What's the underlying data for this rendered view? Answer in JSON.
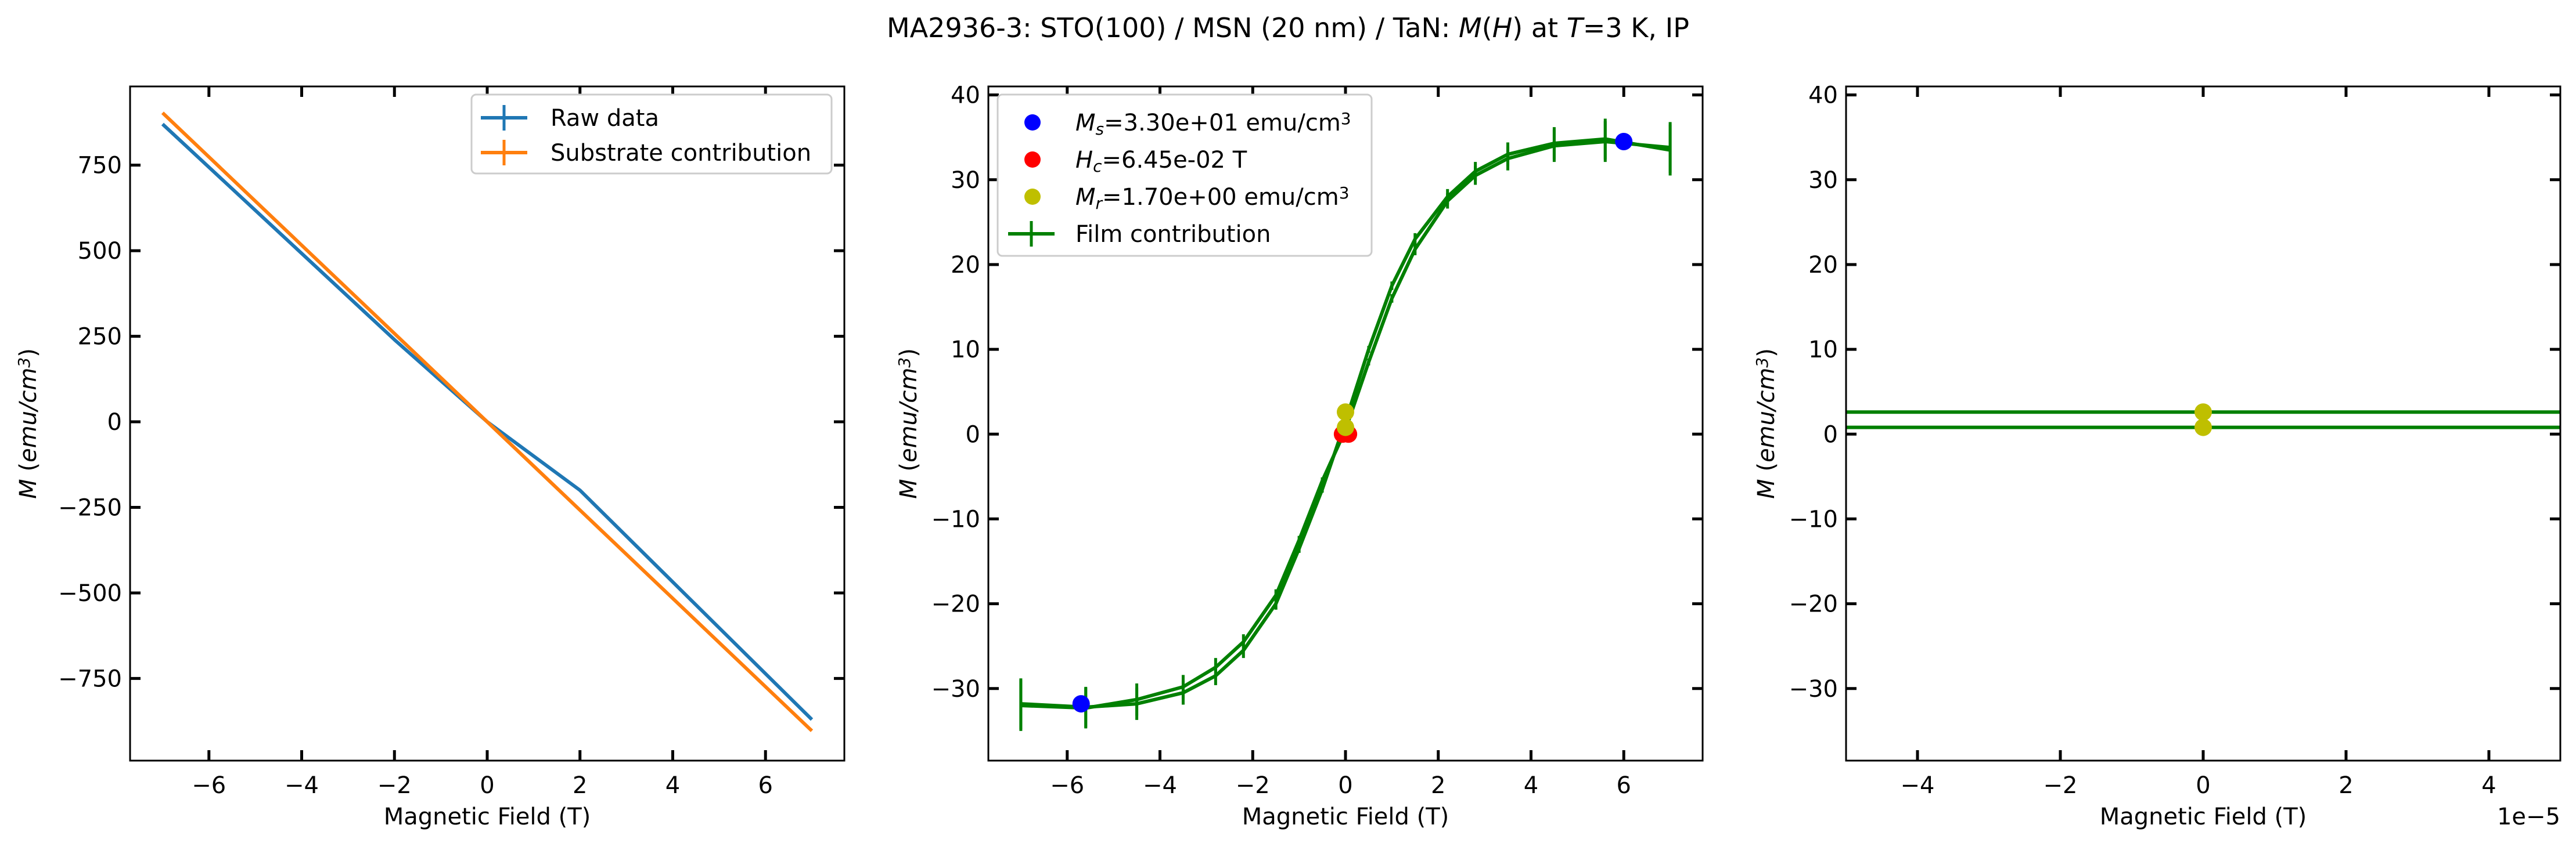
{
  "figure_title_parts": [
    {
      "t": "MA2936-3: STO(100)  / MSN (20 nm) / TaN: ",
      "i": false
    },
    {
      "t": "M",
      "i": true
    },
    {
      "t": "(",
      "i": false
    },
    {
      "t": "H",
      "i": true
    },
    {
      "t": ") at ",
      "i": false
    },
    {
      "t": "T",
      "i": true
    },
    {
      "t": "=3 K, IP",
      "i": false
    }
  ],
  "colors": {
    "raw": "#1f77b4",
    "substrate": "#ff7f0e",
    "film": "#008000",
    "ms": "#0000ff",
    "hc": "#ff0000",
    "mr": "#bfbf00"
  },
  "chart_data": [
    {
      "type": "line",
      "xlabel": "Magnetic Field (T)",
      "ylabel_parts": [
        {
          "t": "M",
          "i": true
        },
        {
          "t": " (",
          "i": false
        },
        {
          "t": "emu/cm",
          "i": true
        },
        {
          "t": "3",
          "i": true,
          "sup": true
        },
        {
          "t": ")",
          "i": false
        }
      ],
      "xlim": [
        -7.7,
        7.7
      ],
      "ylim": [
        -990,
        980
      ],
      "xticks": [
        -6,
        -4,
        -2,
        0,
        2,
        4,
        6
      ],
      "xtick_labels": [
        "−6",
        "−4",
        "−2",
        "0",
        "2",
        "4",
        "6"
      ],
      "yticks": [
        -750,
        -500,
        -250,
        0,
        250,
        500,
        750
      ],
      "ytick_labels": [
        "−750",
        "−500",
        "−250",
        "0",
        "250",
        "500",
        "750"
      ],
      "legend_position": "upper right",
      "series": [
        {
          "name": "Raw data",
          "color_key": "raw",
          "x": [
            -7,
            -2,
            0,
            2,
            7
          ],
          "y": [
            870,
            240,
            0,
            -200,
            -870
          ]
        },
        {
          "name": "Substrate contribution",
          "color_key": "substrate",
          "x": [
            -7,
            0,
            7
          ],
          "y": [
            903,
            0,
            -903
          ]
        }
      ]
    },
    {
      "type": "line",
      "xlabel": "Magnetic Field (T)",
      "ylabel_parts": [
        {
          "t": "M",
          "i": true
        },
        {
          "t": " (",
          "i": false
        },
        {
          "t": "emu/cm",
          "i": true
        },
        {
          "t": "3",
          "i": true,
          "sup": true
        },
        {
          "t": ")",
          "i": false
        }
      ],
      "xlim": [
        -7.7,
        7.7
      ],
      "ylim": [
        -38.5,
        41
      ],
      "xticks": [
        -6,
        -4,
        -2,
        0,
        2,
        4,
        6
      ],
      "xtick_labels": [
        "−6",
        "−4",
        "−2",
        "0",
        "2",
        "4",
        "6"
      ],
      "yticks": [
        -30,
        -20,
        -10,
        0,
        10,
        20,
        30,
        40
      ],
      "ytick_labels": [
        "−30",
        "−20",
        "−10",
        "0",
        "10",
        "20",
        "30",
        "40"
      ],
      "legend_position": "upper left",
      "legend": [
        {
          "kind": "dot",
          "color_key": "ms",
          "parts": [
            {
              "t": "M",
              "i": true
            },
            {
              "t": "s",
              "i": true,
              "sub": true
            },
            {
              "t": "=3.30e+01 emu/cm",
              "i": false
            },
            {
              "t": "3",
              "i": false,
              "sup": true
            }
          ]
        },
        {
          "kind": "dot",
          "color_key": "hc",
          "parts": [
            {
              "t": "H",
              "i": true
            },
            {
              "t": "c",
              "i": true,
              "sub": true
            },
            {
              "t": "=6.45e-02 T",
              "i": false
            }
          ]
        },
        {
          "kind": "dot",
          "color_key": "mr",
          "parts": [
            {
              "t": "M",
              "i": true
            },
            {
              "t": "r",
              "i": true,
              "sub": true
            },
            {
              "t": "=1.70e+00 emu/cm",
              "i": false
            },
            {
              "t": "3",
              "i": false,
              "sup": true
            }
          ]
        },
        {
          "kind": "errline",
          "color_key": "film",
          "parts": [
            {
              "t": "Film contribution",
              "i": false
            }
          ]
        }
      ],
      "series": [
        {
          "name": "Film contribution",
          "color_key": "film",
          "branch": "descending",
          "x": [
            7,
            5.6,
            4.5,
            3.5,
            2.8,
            2.2,
            1.5,
            1.0,
            0.5,
            0,
            -0.5,
            -1.0,
            -1.5,
            -2.2,
            -2.8,
            -3.5,
            -4.5,
            -5.6,
            -7
          ],
          "y": [
            33.5,
            34.8,
            34.3,
            33.0,
            31.0,
            28.0,
            23.0,
            17.5,
            10.0,
            1.5,
            -6.5,
            -13.5,
            -20.0,
            -25.5,
            -28.5,
            -30.5,
            -31.8,
            -32.2,
            -31.8
          ],
          "err": [
            3.0,
            2.4,
            1.9,
            1.4,
            1.1,
            0.9,
            0.7,
            0.5,
            0.4,
            0.3,
            0.4,
            0.5,
            0.7,
            0.9,
            1.1,
            1.4,
            1.9,
            2.4,
            3.0
          ]
        },
        {
          "name": "Film contribution",
          "color_key": "film",
          "branch": "ascending",
          "x": [
            -7,
            -5.6,
            -4.5,
            -3.5,
            -2.8,
            -2.2,
            -1.5,
            -1.0,
            -0.5,
            0,
            0.5,
            1.0,
            1.5,
            2.2,
            2.8,
            3.5,
            4.5,
            5.6,
            7
          ],
          "y": [
            -32.0,
            -32.3,
            -31.3,
            -29.8,
            -27.5,
            -24.5,
            -19.0,
            -12.5,
            -5.5,
            0.5,
            8.5,
            16.0,
            21.8,
            27.5,
            30.5,
            32.5,
            34.0,
            34.5,
            33.8
          ],
          "err": [
            3.0,
            2.4,
            1.9,
            1.4,
            1.1,
            0.9,
            0.7,
            0.5,
            0.4,
            0.3,
            0.4,
            0.5,
            0.7,
            0.9,
            1.1,
            1.4,
            1.9,
            2.4,
            3.0
          ]
        }
      ],
      "points": [
        {
          "label": "Ms",
          "color_key": "ms",
          "x": [
            6.0,
            -5.7
          ],
          "y": [
            34.5,
            -31.8
          ]
        },
        {
          "label": "Hc",
          "color_key": "hc",
          "x": [
            -0.0645,
            0.0645
          ],
          "y": [
            0,
            0
          ]
        },
        {
          "label": "Mr",
          "color_key": "mr",
          "x": [
            0,
            0
          ],
          "y": [
            2.6,
            0.8
          ]
        }
      ]
    },
    {
      "type": "line",
      "xlabel": "Magnetic Field (T)",
      "ylabel_parts": [
        {
          "t": "M",
          "i": true
        },
        {
          "t": " (",
          "i": false
        },
        {
          "t": "emu/cm",
          "i": true
        },
        {
          "t": "3",
          "i": true,
          "sup": true
        },
        {
          "t": ")",
          "i": false
        }
      ],
      "xlim": [
        -5,
        5
      ],
      "ylim": [
        -38.5,
        41
      ],
      "xticks": [
        -4,
        -2,
        0,
        2,
        4
      ],
      "xtick_labels": [
        "−4",
        "−2",
        "0",
        "2",
        "4"
      ],
      "x_offset_label": "1e−5",
      "yticks": [
        -30,
        -20,
        -10,
        0,
        10,
        20,
        30,
        40
      ],
      "ytick_labels": [
        "−30",
        "−20",
        "−10",
        "0",
        "10",
        "20",
        "30",
        "40"
      ],
      "series": [
        {
          "name": "Film contribution",
          "color_key": "film",
          "x": [
            -5,
            5
          ],
          "y": [
            2.6,
            2.6
          ]
        },
        {
          "name": "Film contribution",
          "color_key": "film",
          "x": [
            -5,
            5
          ],
          "y": [
            0.8,
            0.8
          ]
        }
      ],
      "points": [
        {
          "label": "Mr",
          "color_key": "mr",
          "x": [
            0,
            0
          ],
          "y": [
            2.6,
            0.8
          ]
        }
      ]
    }
  ]
}
